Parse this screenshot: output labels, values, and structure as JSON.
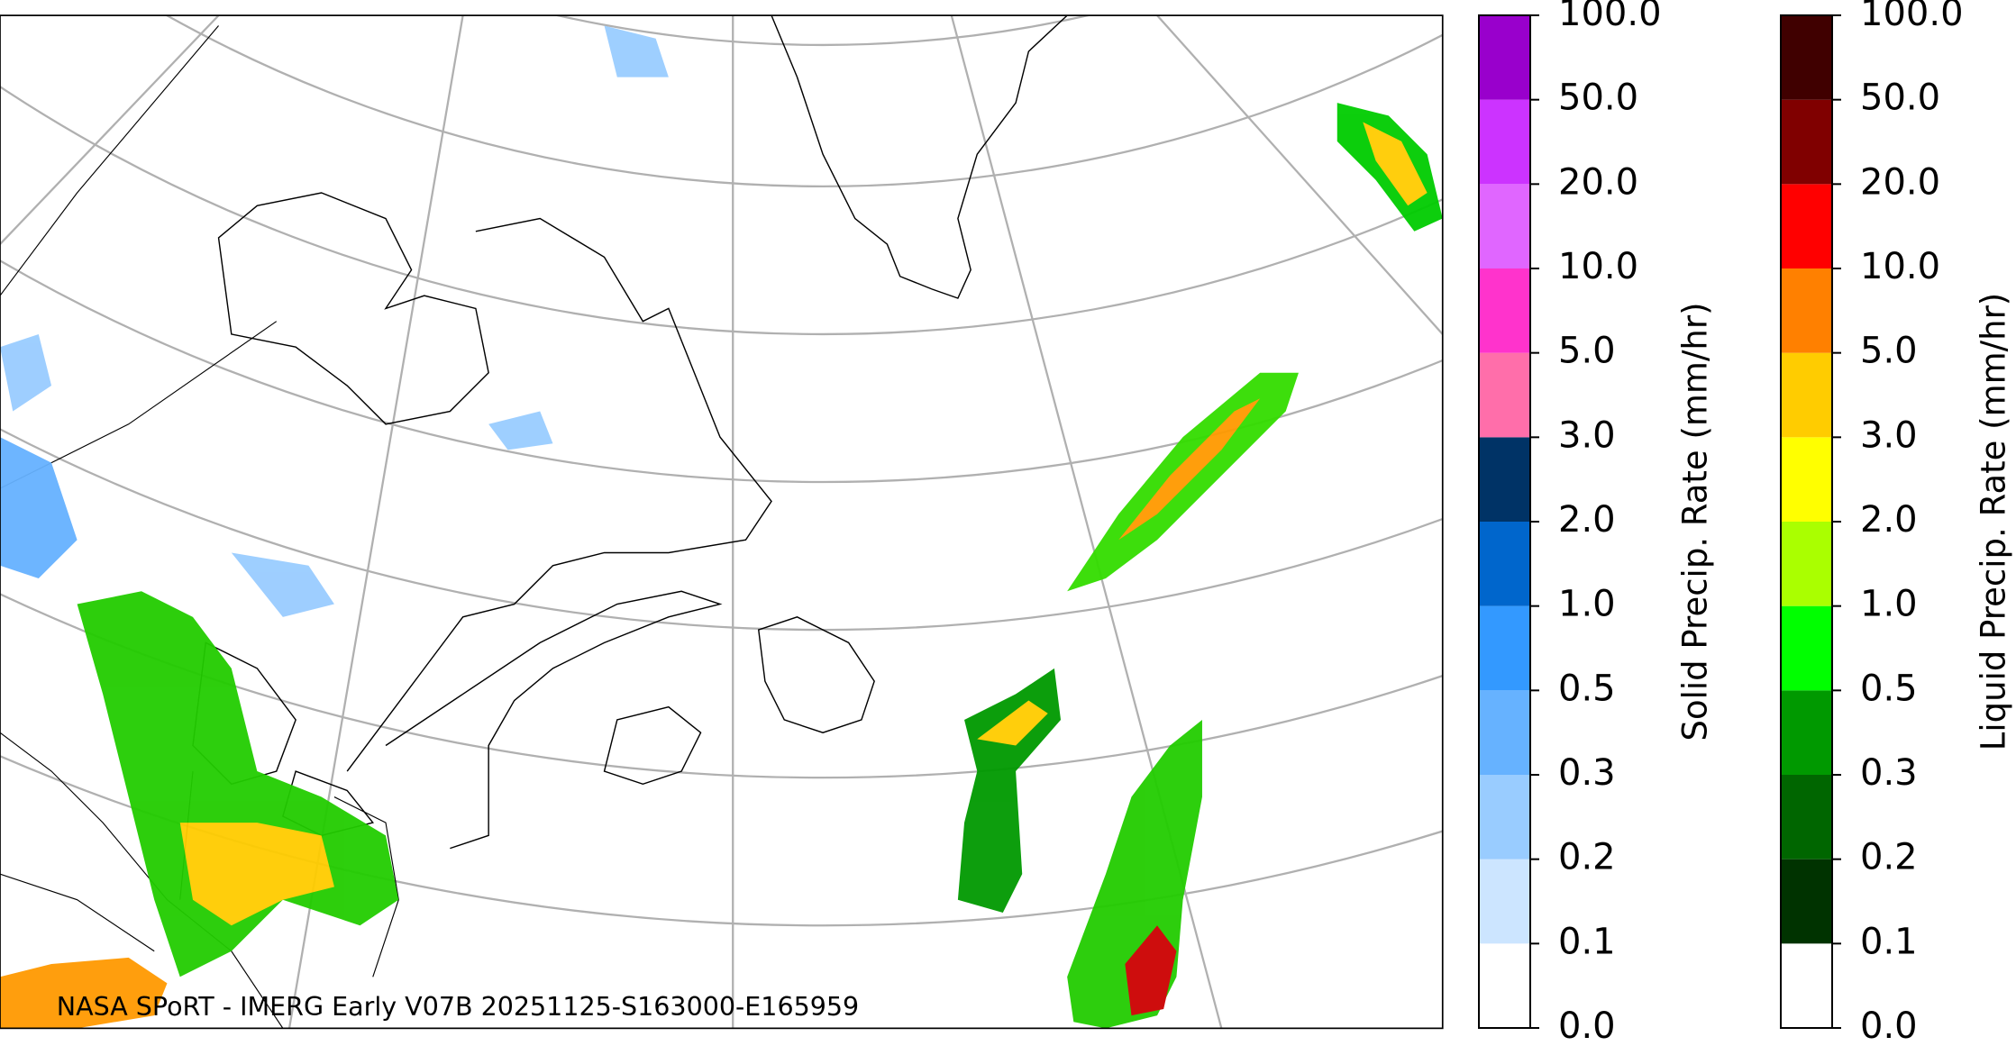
{
  "map": {
    "credit": "NASA SPoRT - IMERG Early V07B 20251125-S163000-E165959"
  },
  "colorbars": [
    {
      "label": "Solid Precip. Rate (mm/hr)",
      "colors": [
        "#ffffff",
        "#cce5ff",
        "#99ccff",
        "#66b2ff",
        "#3399ff",
        "#0066cc",
        "#003366",
        "#ff6eaa",
        "#ff33cc",
        "#e066ff",
        "#cc33ff",
        "#9900cc"
      ],
      "ticks": [
        {
          "value": 0,
          "label": "0.0"
        },
        {
          "value": 0.1,
          "label": "0.1"
        },
        {
          "value": 0.2,
          "label": "0.2"
        },
        {
          "value": 0.3,
          "label": "0.3"
        },
        {
          "value": 0.5,
          "label": "0.5"
        },
        {
          "value": 1,
          "label": "1.0"
        },
        {
          "value": 2,
          "label": "2.0"
        },
        {
          "value": 3,
          "label": "3.0"
        },
        {
          "value": 5,
          "label": "5.0"
        },
        {
          "value": 10,
          "label": "10.0"
        },
        {
          "value": 20,
          "label": "20.0"
        },
        {
          "value": 50,
          "label": "50.0"
        },
        {
          "value": 100,
          "label": "100.0"
        }
      ]
    },
    {
      "label": "Liquid Precip. Rate (mm/hr)",
      "colors": [
        "#ffffff",
        "#003300",
        "#006600",
        "#009900",
        "#00ff00",
        "#aaff00",
        "#ffff00",
        "#ffcc00",
        "#ff8000",
        "#ff0000",
        "#800000",
        "#400000"
      ],
      "ticks": [
        {
          "value": 0,
          "label": "0.0"
        },
        {
          "value": 0.1,
          "label": "0.1"
        },
        {
          "value": 0.2,
          "label": "0.2"
        },
        {
          "value": 0.3,
          "label": "0.3"
        },
        {
          "value": 0.5,
          "label": "0.5"
        },
        {
          "value": 1,
          "label": "1.0"
        },
        {
          "value": 2,
          "label": "2.0"
        },
        {
          "value": 3,
          "label": "3.0"
        },
        {
          "value": 5,
          "label": "5.0"
        },
        {
          "value": 10,
          "label": "10.0"
        },
        {
          "value": 20,
          "label": "20.0"
        },
        {
          "value": 50,
          "label": "50.0"
        },
        {
          "value": 100,
          "label": "100.0"
        }
      ]
    }
  ]
}
